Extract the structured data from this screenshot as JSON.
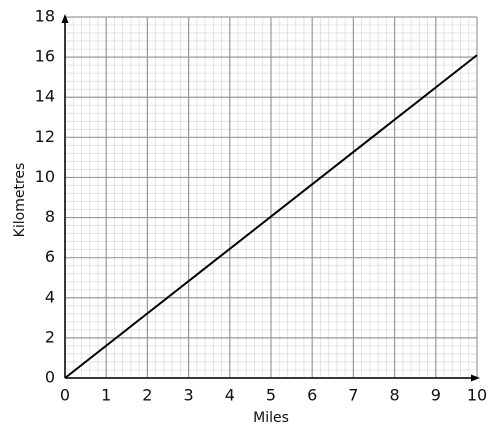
{
  "chart_data": {
    "type": "line",
    "x_label": "Miles",
    "y_label": "Kilometres",
    "x": [
      0,
      10
    ],
    "values": [
      0,
      16.1
    ],
    "color": "#000000",
    "xlim": [
      0,
      10
    ],
    "ylim": [
      0,
      18
    ],
    "xticks": [
      0,
      1,
      2,
      3,
      4,
      5,
      6,
      7,
      8,
      9,
      10
    ],
    "yticks": [
      0,
      2,
      4,
      6,
      8,
      10,
      12,
      14,
      16,
      18
    ],
    "grid": true,
    "minor_grid": true
  }
}
